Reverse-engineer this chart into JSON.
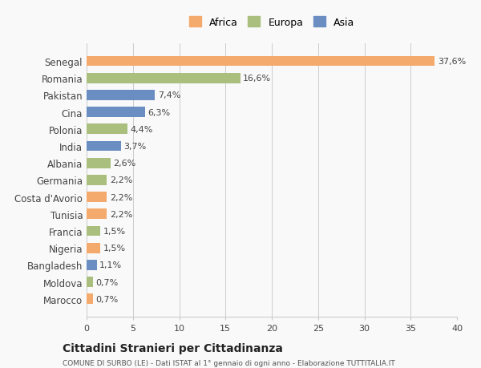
{
  "countries": [
    "Senegal",
    "Romania",
    "Pakistan",
    "Cina",
    "Polonia",
    "India",
    "Albania",
    "Germania",
    "Costa d'Avorio",
    "Tunisia",
    "Francia",
    "Nigeria",
    "Bangladesh",
    "Moldova",
    "Marocco"
  ],
  "values": [
    37.6,
    16.6,
    7.4,
    6.3,
    4.4,
    3.7,
    2.6,
    2.2,
    2.2,
    2.2,
    1.5,
    1.5,
    1.1,
    0.7,
    0.7
  ],
  "labels": [
    "37,6%",
    "16,6%",
    "7,4%",
    "6,3%",
    "4,4%",
    "3,7%",
    "2,6%",
    "2,2%",
    "2,2%",
    "2,2%",
    "1,5%",
    "1,5%",
    "1,1%",
    "0,7%",
    "0,7%"
  ],
  "colors": [
    "#F4A96D",
    "#AABF7E",
    "#6B8EC2",
    "#6B8EC2",
    "#AABF7E",
    "#6B8EC2",
    "#AABF7E",
    "#AABF7E",
    "#F4A96D",
    "#F4A96D",
    "#AABF7E",
    "#F4A96D",
    "#6B8EC2",
    "#AABF7E",
    "#F4A96D"
  ],
  "continent_labels": [
    "Africa",
    "Europa",
    "Asia"
  ],
  "continent_colors": [
    "#F4A96D",
    "#AABF7E",
    "#6B8EC2"
  ],
  "xlim": [
    0,
    40
  ],
  "xticks": [
    0,
    5,
    10,
    15,
    20,
    25,
    30,
    35,
    40
  ],
  "title": "Cittadini Stranieri per Cittadinanza",
  "subtitle": "COMUNE DI SURBO (LE) - Dati ISTAT al 1° gennaio di ogni anno - Elaborazione TUTTITALIA.IT",
  "background_color": "#f9f9f9",
  "grid_color": "#cccccc"
}
